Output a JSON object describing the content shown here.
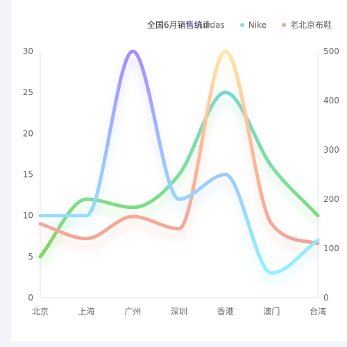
{
  "chart_data": {
    "type": "line",
    "title": "全国6月销售统计",
    "categories": [
      "北京",
      "上海",
      "广州",
      "深圳",
      "香港",
      "澳门",
      "台湾"
    ],
    "series": [
      {
        "name": "Adidas",
        "axis": "left",
        "values": [
          10,
          10,
          30,
          12,
          15,
          3,
          7
        ],
        "color": "#a78bfa",
        "gradient": [
          "#a68cff",
          "#9ec6ff",
          "#8ef3ff"
        ]
      },
      {
        "name": "Nike",
        "axis": "left",
        "values": [
          5,
          12,
          11,
          15,
          25,
          16,
          10
        ],
        "color": "#86dbe8",
        "gradient": [
          "#6fd7d0",
          "#7ee09a",
          "#79d95c"
        ]
      },
      {
        "name": "老北京布鞋",
        "axis": "right",
        "values": [
          150,
          120,
          165,
          140,
          500,
          150,
          110
        ],
        "color": "#f7a48d",
        "gradient": [
          "#ffe4a5",
          "#ffb898",
          "#f4a496"
        ]
      }
    ],
    "y_left": {
      "ticks": [
        0,
        5,
        10,
        15,
        20,
        25,
        30
      ],
      "ylim": [
        0,
        30
      ]
    },
    "y_right": {
      "ticks": [
        0,
        100,
        200,
        300,
        400,
        500
      ],
      "ylim": [
        0,
        500
      ]
    },
    "grid": false,
    "legend_position": "top-right",
    "smooth": true
  }
}
